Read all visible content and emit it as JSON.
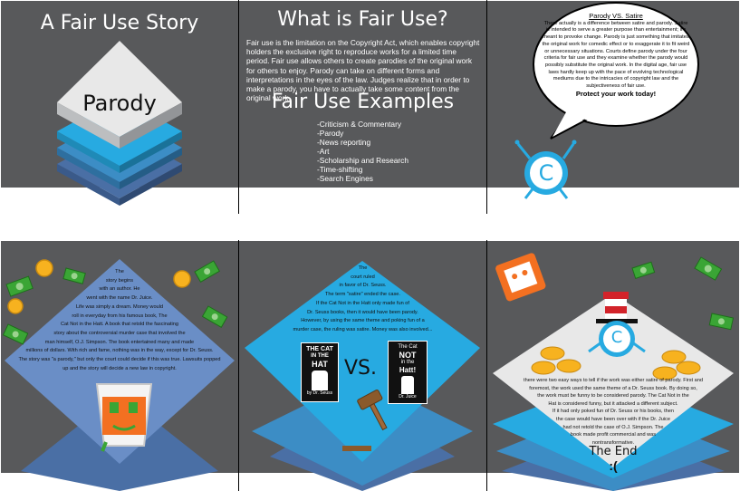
{
  "panel1": {
    "title": "A Fair Use Story",
    "diamond_label": "Parody"
  },
  "panel2": {
    "title": "What is Fair Use?",
    "body": "Fair use is the limitation on the Copyright Act, which enables copyright holders the exclusive right to reproduce works for a limited time period. Fair use allows others to create parodies of the original work for others to enjoy. Parody can take on different forms and interpretations in the eyes of the law. Judges realize that in order to make a parody, you have to actually take some content from the original work.",
    "subtitle": "Fair Use Examples",
    "examples": [
      "-Criticism & Commentary",
      "-Parody",
      "-News reporting",
      "-Art",
      "-Scholarship and Research",
      "-Time-shifting",
      "-Search Engines"
    ]
  },
  "panel3": {
    "bubble_heading": "Parody VS. Satire",
    "bubble_body": "There actually is a difference between satire and parody. Satire is intended to serve a greater purpose than entertainment; it's meant to provoke change. Parody is just something that imitates the original work for comedic effect or to exaggerate it to fit weird or unnecessary situations. Courts define parody under the four criteria for fair use and they examine whether the parody would possibly substitute the original work. In the digital age, fair use laws hardly keep up with the pace of evolving technological mediums due to the intricacies of copyright law and the subjectiveness of fair use.",
    "bubble_footer": "Protect your work today!",
    "mascot_letter": "C"
  },
  "panel4": {
    "story_lines": [
      "The",
      "story begins",
      "with an author. He",
      "went with the name Dr. Juice.",
      "Life was simply a dream. Money would",
      "roll in everyday from his famous book, The",
      "Cat Not in the Hatt. A book that retold the fascinating",
      "story about the controversial murder case that involved the",
      "man himself, O.J. Simpson. The book entertained many and made",
      "millions of dollars. With rich and fame, nothing was in the way, except for Dr. Seuss.",
      "The story was \"a parody,\" but only the court could decide if this was true. Lawsuits popped",
      "up and the story will decide a new law in copyright."
    ]
  },
  "panel5": {
    "story_lines": [
      "The",
      "court ruled",
      "in favor of Dr. Seuss.",
      "The term \"satire\" ended the case.",
      "If the Cat Not in the Hatt only made fun of",
      "Dr. Seuss books, then it would have been parody.",
      "However, by using the same theme and poking fun of a",
      "murder case, the ruling was satire. Money was also involved..."
    ],
    "vs_label": "VS.",
    "book1_title_line1": "THE CAT",
    "book1_title_line2": "IN THE",
    "book1_title_line3": "HAT",
    "book1_author": "by Dr. Seuss",
    "book2_title_line1": "The Cat",
    "book2_title_line2": "NOT",
    "book2_title_line3": "in the",
    "book2_title_line4": "Hatt!",
    "book2_author": "Dr. Juice"
  },
  "panel6": {
    "story_lines": [
      "there were two easy ways to tell if the work was either satire of parody. First and",
      "foremost, the work used the same theme of a Dr. Seuss book. By doing so,",
      "the work must be funny to be considered parody. The Cat Not in the",
      "Hat is considered funny, but it attacked a different subject.",
      "If it had only poked fun of Dr. Seuss or his books, then",
      "the case would have been over with if the Dr. Juice",
      "had not retold the case of O.J. Simpson. The",
      "book made profit commercial and was",
      "nontransformative."
    ],
    "end_label": "The End",
    "sad_face": ":("
  },
  "colors": {
    "panel_gray": "#58595b",
    "diamond_top": "#e8e8e8",
    "diamond_side": "#a7a9ac",
    "layer_cyan": "#27aae1",
    "layer_blue": "#3c8dc5",
    "layer_navy": "#4a6fa5",
    "blue_diamond": "#6a8ec6",
    "mascot_blue": "#27aae1"
  }
}
